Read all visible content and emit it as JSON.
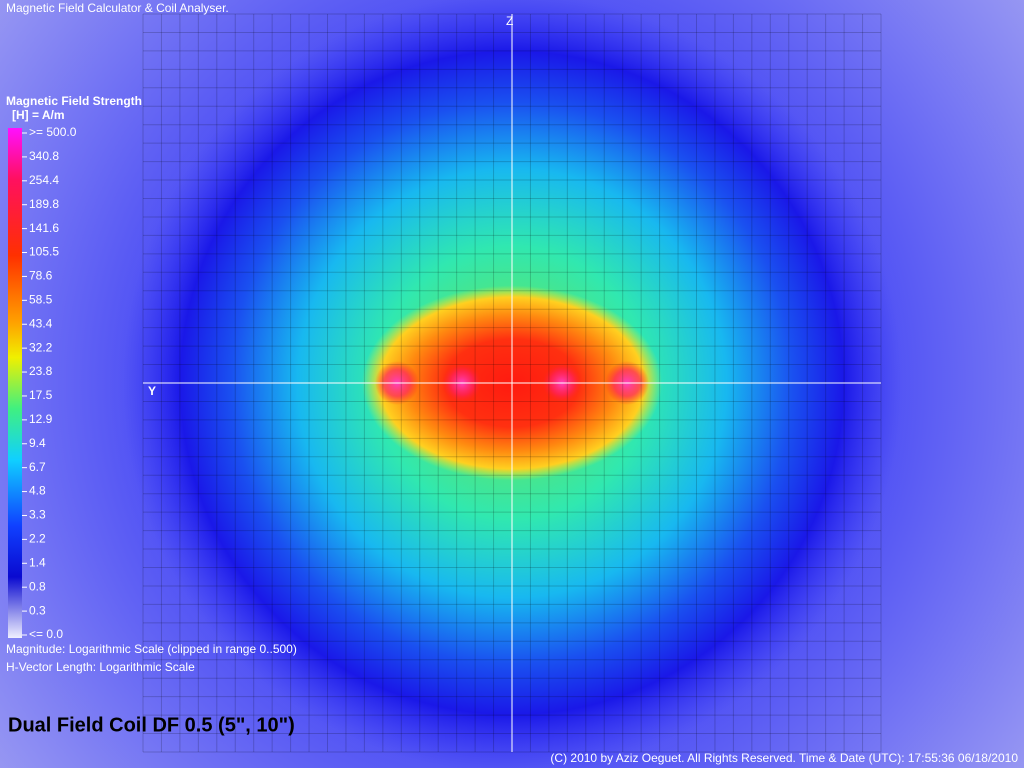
{
  "header": {
    "title": "Magnetic Field Calculator & Coil Analyser."
  },
  "axes": {
    "z": "Z",
    "y": "Y"
  },
  "legend": {
    "title": "Magnetic Field Strength",
    "unit": "[H] = A/m",
    "labels": [
      ">= 500.0",
      "340.8",
      "254.4",
      "189.8",
      "141.6",
      "105.5",
      "78.6",
      "58.5",
      "43.4",
      "32.2",
      "23.8",
      "17.5",
      "12.9",
      "9.4",
      "6.7",
      "4.8",
      "3.3",
      "2.2",
      "1.4",
      "0.8",
      "0.3",
      "<= 0.0"
    ]
  },
  "notes": [
    "Magnitude: Logarithmic Scale (clipped in range 0..500)",
    "H-Vector Length: Logarithmic Scale"
  ],
  "coil_name": "Dual Field Coil DF 0.5 (5\", 10\")",
  "footer": "(C) 2010 by Aziz Oeguet. All Rights Reserved.  Time & Date (UTC): 17:55:36  06/18/2010"
}
